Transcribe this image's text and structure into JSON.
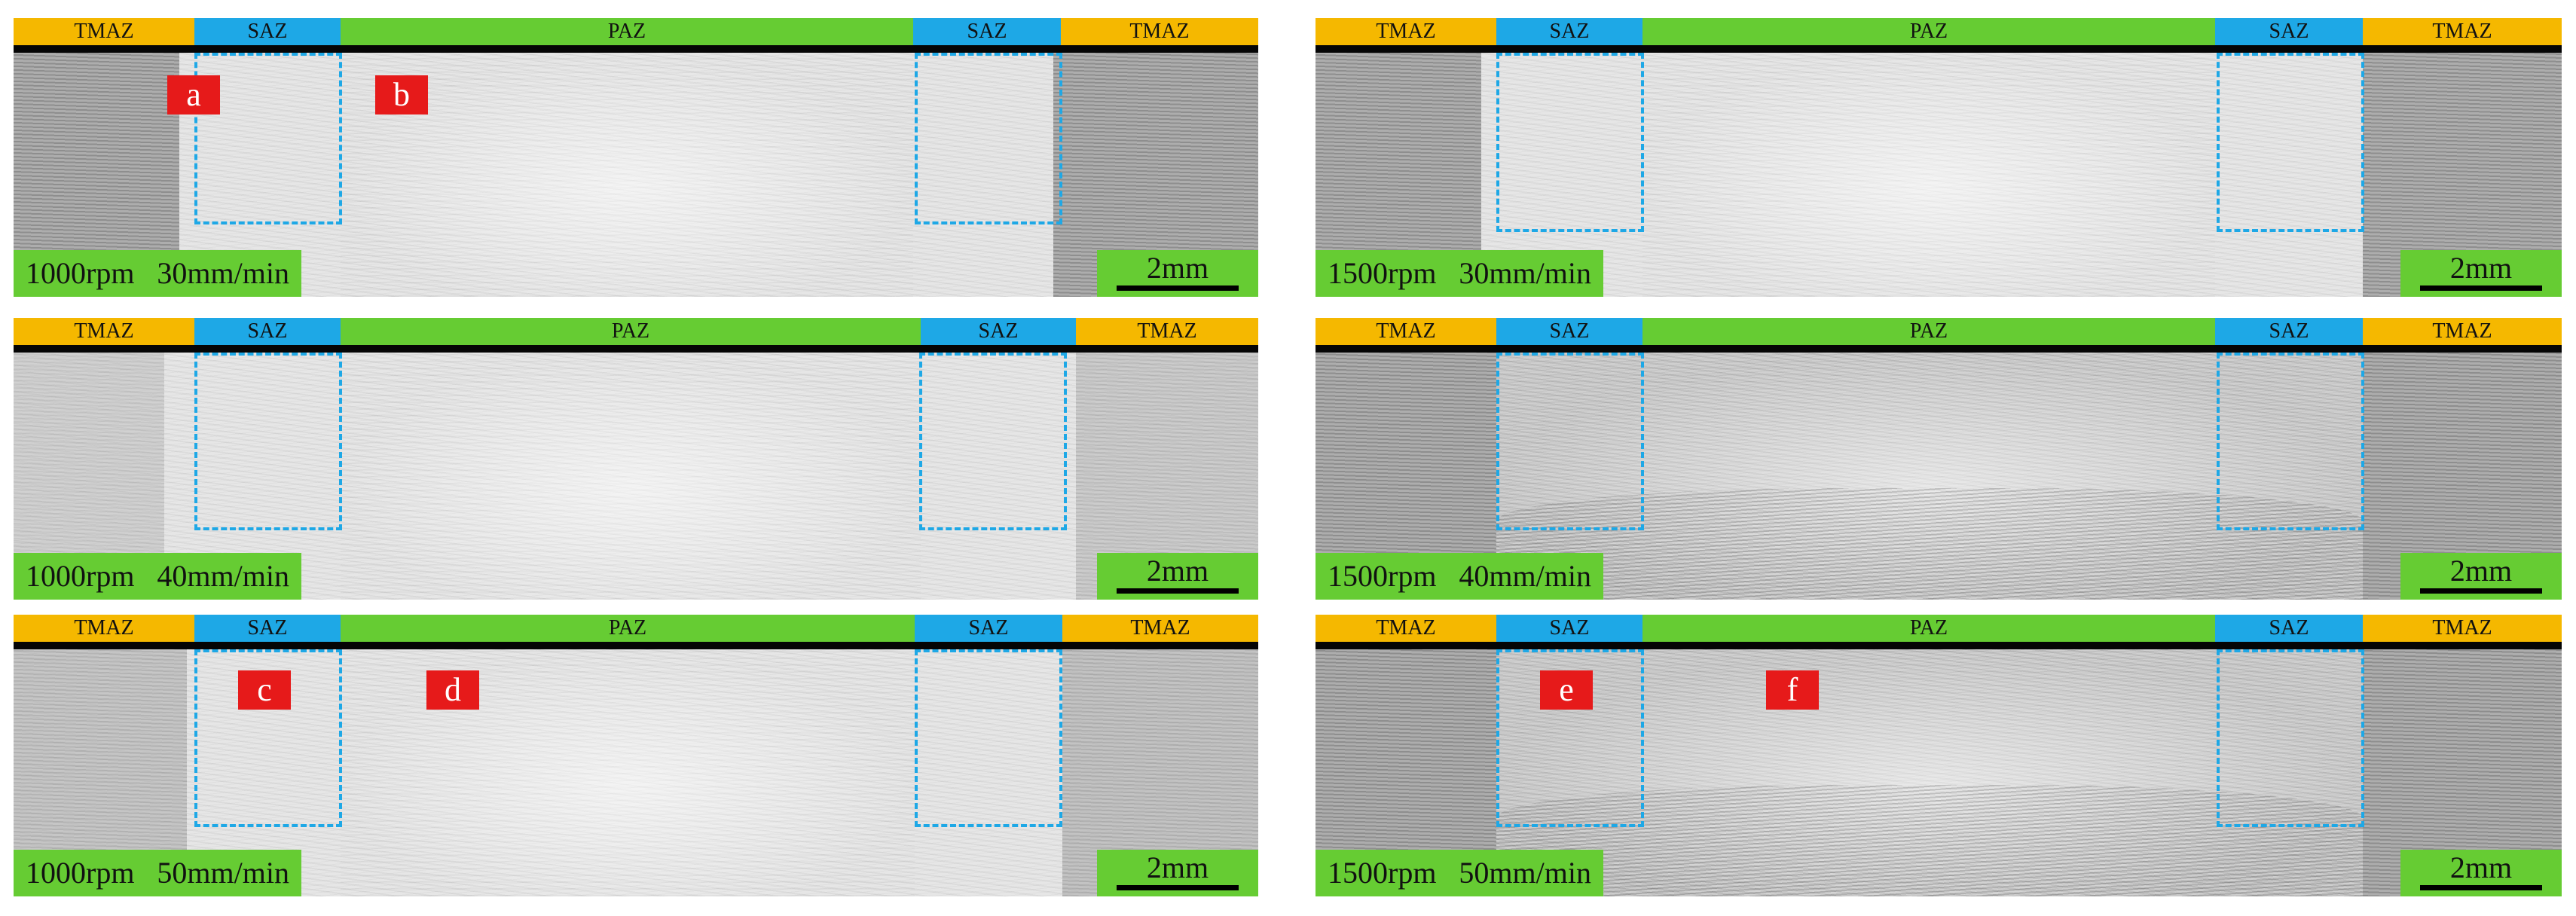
{
  "colors": {
    "tmaz": "#f5b800",
    "saz": "#1ea8e6",
    "paz": "#66cc33",
    "label_box": "#e61a1a",
    "box_border": "#1ea8e6"
  },
  "panels": [
    {
      "zones": [
        "TMAZ",
        "SAZ",
        "PAZ",
        "SAZ",
        "TMAZ"
      ],
      "params": "1000rpm   30mm/min",
      "scale": "2mm",
      "letters": [
        "a",
        "b"
      ]
    },
    {
      "zones": [
        "TMAZ",
        "SAZ",
        "PAZ",
        "SAZ",
        "TMAZ"
      ],
      "params": "1500rpm   30mm/min",
      "scale": "2mm",
      "letters": []
    },
    {
      "zones": [
        "TMAZ",
        "SAZ",
        "PAZ",
        "SAZ",
        "TMAZ"
      ],
      "params": "1000rpm   40mm/min",
      "scale": "2mm",
      "letters": []
    },
    {
      "zones": [
        "TMAZ",
        "SAZ",
        "PAZ",
        "SAZ",
        "TMAZ"
      ],
      "params": "1500rpm   40mm/min",
      "scale": "2mm",
      "letters": []
    },
    {
      "zones": [
        "TMAZ",
        "SAZ",
        "PAZ",
        "SAZ",
        "TMAZ"
      ],
      "params": "1000rpm   50mm/min",
      "scale": "2mm",
      "letters": [
        "c",
        "d"
      ]
    },
    {
      "zones": [
        "TMAZ",
        "SAZ",
        "PAZ",
        "SAZ",
        "TMAZ"
      ],
      "params": "1500rpm   50mm/min",
      "scale": "2mm",
      "letters": [
        "e",
        "f"
      ]
    }
  ]
}
